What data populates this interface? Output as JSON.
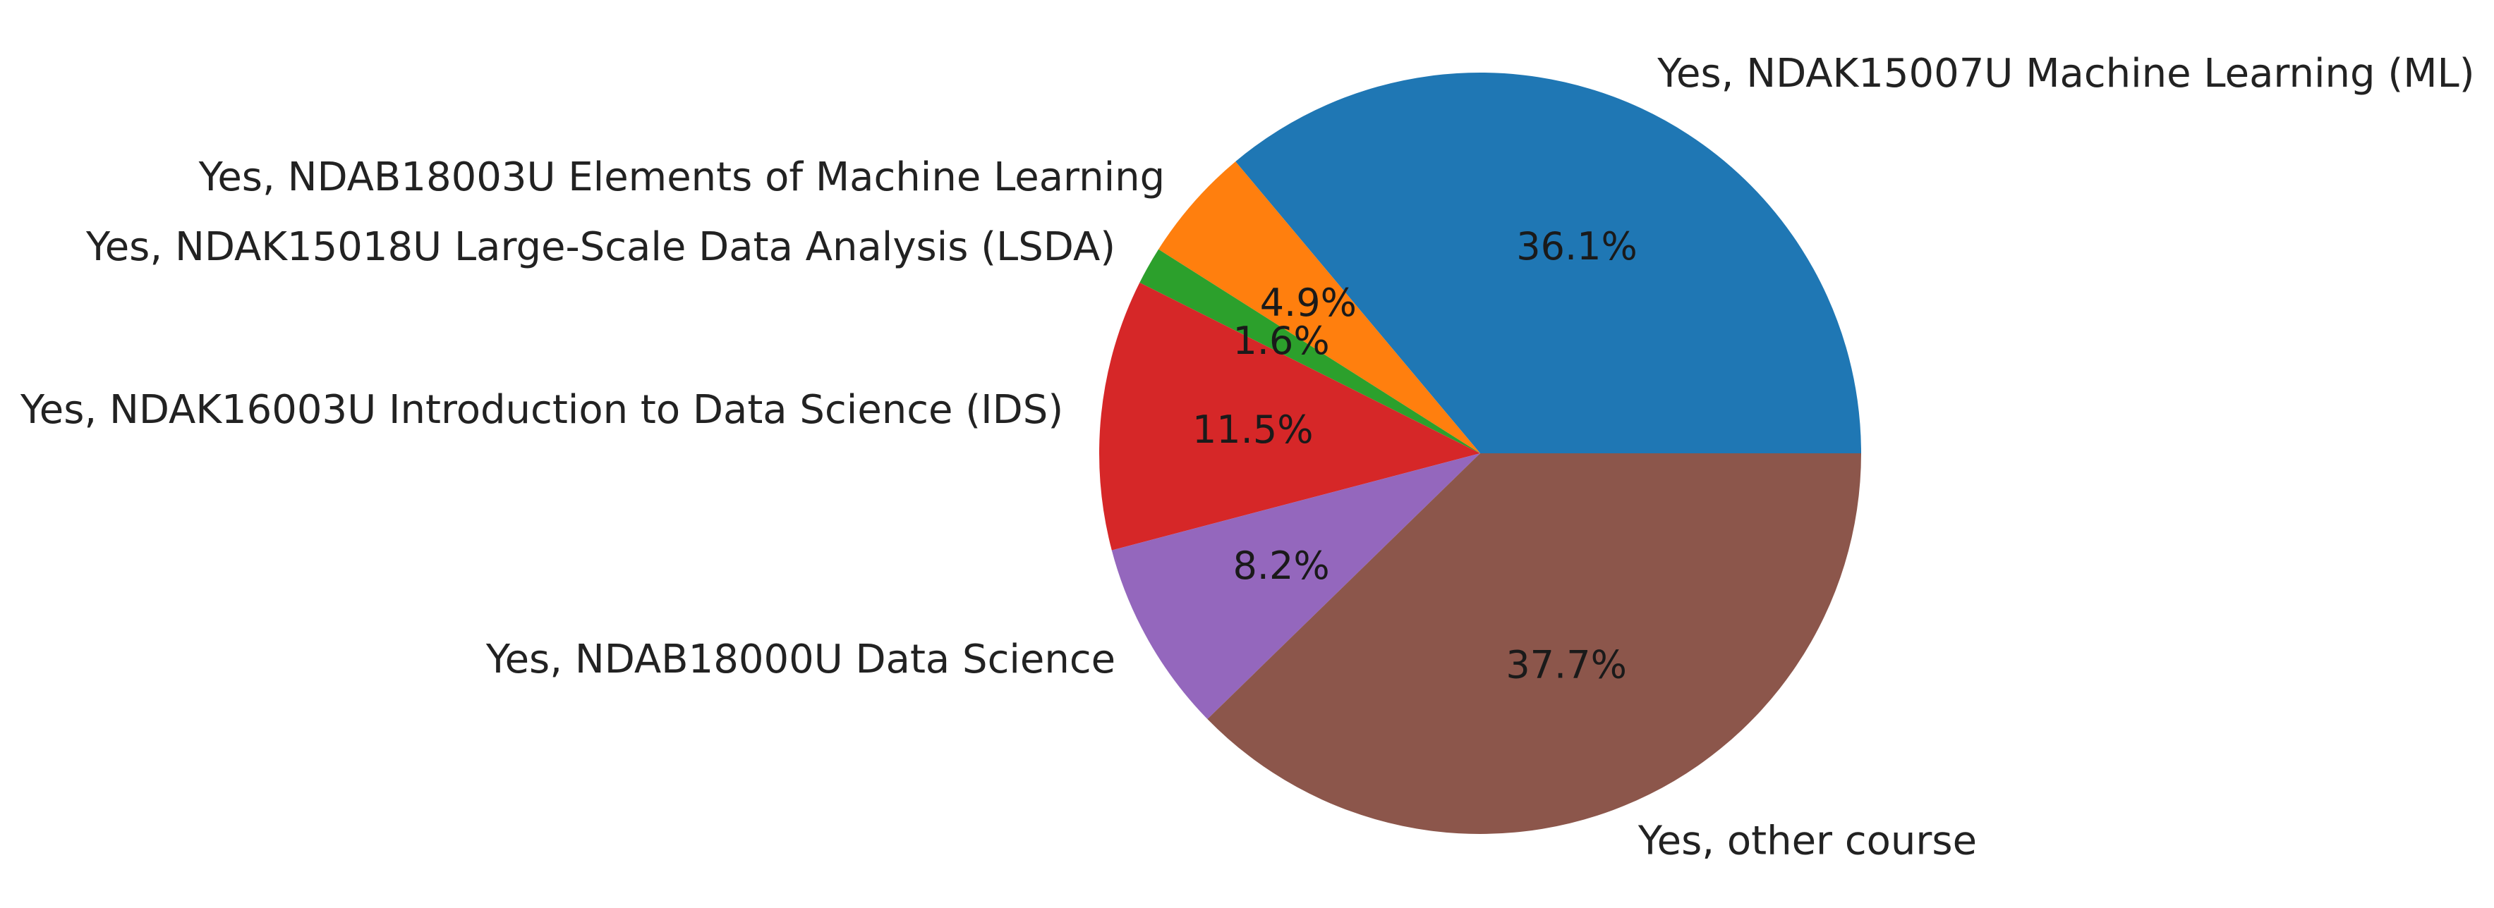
{
  "chart_data": {
    "type": "pie",
    "start_angle_deg": 0,
    "direction": "counterclockwise",
    "slices": [
      {
        "label": "Yes, NDAK15007U Machine Learning (ML)",
        "value": 36.1,
        "pct_label": "36.1%",
        "color": "#1f77b4"
      },
      {
        "label": "Yes, NDAB18003U Elements of Machine Learning",
        "value": 4.9,
        "pct_label": "4.9%",
        "color": "#ff7f0e"
      },
      {
        "label": "Yes, NDAK15018U Large-Scale Data Analysis (LSDA)",
        "value": 1.6,
        "pct_label": "1.6%",
        "color": "#2ca02c"
      },
      {
        "label": "Yes, NDAK16003U Introduction to Data Science (IDS)",
        "value": 11.5,
        "pct_label": "11.5%",
        "color": "#d62728"
      },
      {
        "label": "Yes, NDAB18000U Data Science",
        "value": 8.2,
        "pct_label": "8.2%",
        "color": "#9467bd"
      },
      {
        "label": "Yes, other course",
        "value": 37.7,
        "pct_label": "37.7%",
        "color": "#8c564b"
      }
    ]
  }
}
